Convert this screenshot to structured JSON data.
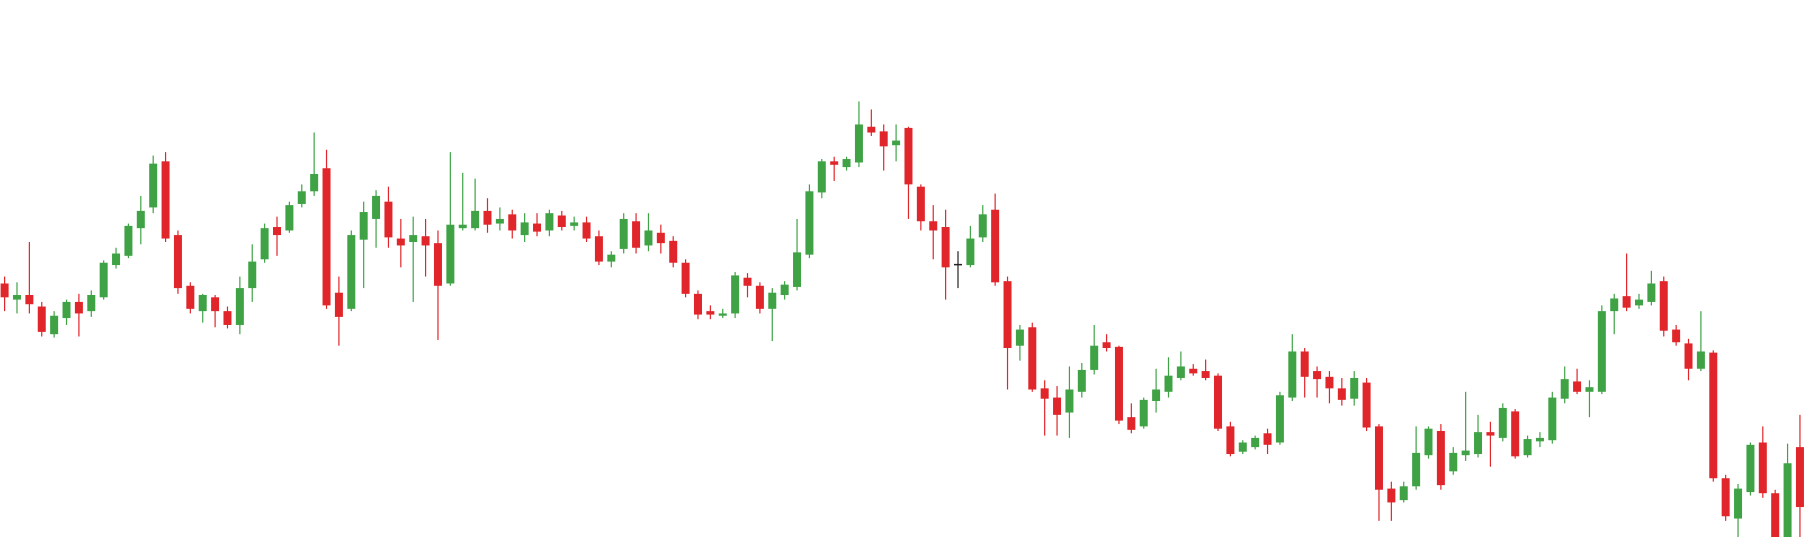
{
  "chart_data": {
    "type": "candlestick",
    "ylim": [
      0,
      466
    ],
    "up_color": "#3fa346",
    "down_color": "#e0262a",
    "doji_color": "#222222",
    "open": [
      220,
      206,
      210,
      200,
      176,
      190,
      204,
      196,
      208,
      236,
      244,
      268,
      286,
      326,
      262,
      218,
      196,
      208,
      196,
      184,
      216,
      241,
      269,
      266,
      289,
      300,
      320,
      212,
      198,
      258,
      276,
      291,
      259,
      256,
      261,
      255,
      220,
      268,
      268,
      283,
      272,
      280,
      262,
      272,
      266,
      279,
      270,
      273,
      261,
      239,
      250,
      274,
      253,
      264,
      257,
      238,
      211,
      196,
      192,
      194,
      225,
      218,
      198,
      210,
      217,
      245,
      299,
      326,
      321,
      325,
      356,
      352,
      340,
      355,
      304,
      274,
      269,
      237,
      236,
      260,
      284,
      222,
      166,
      182,
      129,
      121,
      108,
      126,
      145,
      169,
      165,
      104,
      96,
      118,
      126,
      138,
      146,
      144,
      140,
      96,
      74,
      78,
      90,
      82,
      121,
      161,
      144,
      139,
      129,
      120,
      134,
      96,
      42,
      32,
      44,
      71,
      92,
      57,
      71,
      72,
      91,
      86,
      109,
      71,
      83,
      84,
      120,
      135,
      126,
      126,
      196,
      209,
      201,
      204,
      222,
      180,
      168,
      146,
      160,
      51,
      16,
      39,
      82,
      38,
      0,
      78
    ],
    "high": [
      226,
      221,
      256,
      204,
      196,
      206,
      211,
      214,
      240,
      251,
      272,
      296,
      331,
      334,
      266,
      221,
      211,
      210,
      200,
      226,
      254,
      272,
      278,
      291,
      306,
      351,
      336,
      226,
      266,
      291,
      301,
      304,
      276,
      278,
      276,
      266,
      334,
      316,
      311,
      294,
      286,
      284,
      281,
      281,
      284,
      283,
      278,
      278,
      266,
      248,
      281,
      281,
      281,
      271,
      261,
      241,
      214,
      201,
      198,
      230,
      229,
      221,
      216,
      222,
      276,
      306,
      328,
      330,
      330,
      378,
      371,
      358,
      358,
      356,
      306,
      288,
      284,
      248,
      270,
      288,
      298,
      226,
      184,
      186,
      136,
      131,
      148,
      151,
      184,
      176,
      166,
      116,
      121,
      146,
      156,
      161,
      150,
      154,
      142,
      100,
      84,
      88,
      94,
      126,
      176,
      164,
      148,
      144,
      138,
      144,
      138,
      98,
      48,
      48,
      96,
      96,
      98,
      78,
      126,
      106,
      100,
      116,
      111,
      88,
      91,
      126,
      148,
      146,
      136,
      201,
      211,
      246,
      211,
      231,
      226,
      184,
      172,
      196,
      162,
      54,
      46,
      82,
      96,
      41,
      81,
      106
    ],
    "low": [
      196,
      194,
      194,
      174,
      173,
      184,
      174,
      191,
      206,
      233,
      242,
      254,
      281,
      256,
      211,
      194,
      186,
      182,
      181,
      176,
      204,
      238,
      244,
      264,
      286,
      296,
      198,
      166,
      196,
      216,
      251,
      251,
      234,
      204,
      226,
      171,
      218,
      266,
      266,
      264,
      266,
      259,
      256,
      261,
      261,
      266,
      266,
      256,
      236,
      234,
      246,
      246,
      248,
      246,
      234,
      208,
      189,
      189,
      190,
      190,
      208,
      194,
      170,
      206,
      214,
      242,
      294,
      309,
      318,
      321,
      348,
      318,
      326,
      276,
      266,
      241,
      206,
      216,
      234,
      256,
      218,
      128,
      153,
      126,
      88,
      88,
      86,
      121,
      141,
      161,
      98,
      90,
      94,
      108,
      121,
      136,
      140,
      136,
      92,
      70,
      72,
      76,
      72,
      80,
      118,
      121,
      121,
      116,
      114,
      114,
      92,
      14,
      14,
      30,
      41,
      68,
      41,
      54,
      66,
      69,
      61,
      83,
      68,
      69,
      78,
      81,
      116,
      124,
      104,
      124,
      176,
      196,
      198,
      201,
      174,
      166,
      136,
      144,
      48,
      14,
      0,
      36,
      34,
      0,
      0,
      0
    ],
    "close": [
      208,
      210,
      202,
      178,
      192,
      204,
      194,
      210,
      238,
      246,
      270,
      283,
      324,
      259,
      216,
      198,
      210,
      196,
      184,
      216,
      239,
      268,
      262,
      288,
      300,
      315,
      201,
      191,
      262,
      282,
      296,
      260,
      253,
      262,
      253,
      218,
      271,
      271,
      283,
      271,
      276,
      266,
      273,
      265,
      281,
      269,
      273,
      259,
      239,
      245,
      276,
      251,
      266,
      255,
      238,
      211,
      193,
      193,
      194,
      227,
      218,
      198,
      212,
      219,
      247,
      300,
      326,
      323,
      328,
      358,
      351,
      339,
      344,
      306,
      274,
      266,
      234,
      237,
      259,
      280,
      221,
      164,
      180,
      128,
      120,
      106,
      128,
      145,
      166,
      164,
      101,
      93,
      119,
      128,
      140,
      148,
      142,
      138,
      94,
      72,
      82,
      86,
      80,
      123,
      161,
      139,
      137,
      129,
      119,
      138,
      95,
      41,
      30,
      44,
      73,
      94,
      45,
      73,
      75,
      91,
      88,
      112,
      70,
      85,
      86,
      121,
      137,
      126,
      130,
      196,
      207,
      199,
      206,
      220,
      179,
      169,
      146,
      161,
      51,
      18,
      42,
      80,
      38,
      0,
      64,
      26
    ]
  }
}
